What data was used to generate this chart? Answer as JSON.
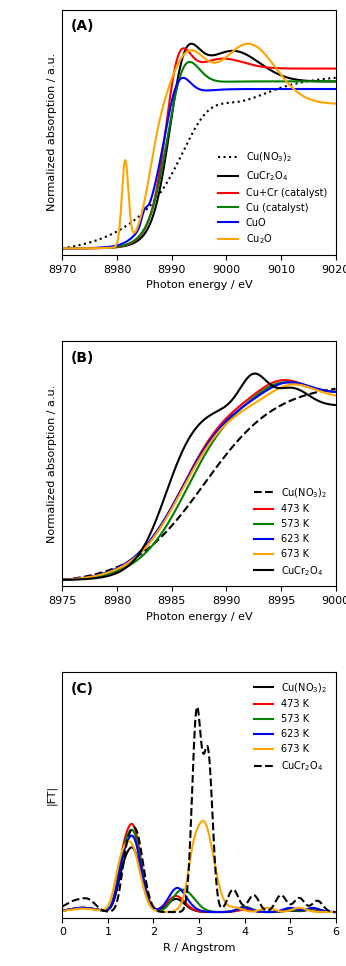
{
  "panel_A": {
    "title": "(A)",
    "xlabel": "Photon energy / eV",
    "ylabel": "Normalized absorption / a.u.",
    "xlim": [
      8970,
      9020
    ],
    "series": [
      {
        "label": "Cu(NO$_3$)$_2$",
        "color": "black",
        "linestyle": "dotted",
        "lw": 1.5
      },
      {
        "label": "CuCr$_2$O$_4$",
        "color": "black",
        "linestyle": "solid",
        "lw": 1.5
      },
      {
        "label": "Cu+Cr (catalyst)",
        "color": "red",
        "linestyle": "solid",
        "lw": 1.5
      },
      {
        "label": "Cu (catalyst)",
        "color": "green",
        "linestyle": "solid",
        "lw": 1.5
      },
      {
        "label": "CuO",
        "color": "blue",
        "linestyle": "solid",
        "lw": 1.5
      },
      {
        "label": "Cu$_2$O",
        "color": "orange",
        "linestyle": "solid",
        "lw": 1.5
      }
    ]
  },
  "panel_B": {
    "title": "(B)",
    "xlabel": "Photon energy / eV",
    "ylabel": "Normalized absorption / a.u.",
    "xlim": [
      8975,
      9000
    ],
    "series": [
      {
        "label": "Cu(NO$_3$)$_2$",
        "color": "black",
        "linestyle": "dashed",
        "lw": 1.5
      },
      {
        "label": "473 K",
        "color": "red",
        "linestyle": "solid",
        "lw": 1.5
      },
      {
        "label": "573 K",
        "color": "green",
        "linestyle": "solid",
        "lw": 1.5
      },
      {
        "label": "623 K",
        "color": "blue",
        "linestyle": "solid",
        "lw": 1.5
      },
      {
        "label": "673 K",
        "color": "orange",
        "linestyle": "solid",
        "lw": 1.5
      },
      {
        "label": "CuCr$_2$O$_4$",
        "color": "black",
        "linestyle": "solid",
        "lw": 1.5
      }
    ]
  },
  "panel_C": {
    "title": "(C)",
    "xlabel": "R / Angstrom",
    "ylabel": "|FT|",
    "xlim": [
      0,
      6
    ],
    "series": [
      {
        "label": "Cu(NO$_3$)$_2$",
        "color": "black",
        "linestyle": "solid",
        "lw": 1.5
      },
      {
        "label": "473 K",
        "color": "red",
        "linestyle": "solid",
        "lw": 1.5
      },
      {
        "label": "573 K",
        "color": "green",
        "linestyle": "solid",
        "lw": 1.5
      },
      {
        "label": "623 K",
        "color": "blue",
        "linestyle": "solid",
        "lw": 1.5
      },
      {
        "label": "673 K",
        "color": "orange",
        "linestyle": "solid",
        "lw": 1.5
      },
      {
        "label": "CuCr$_2$O$_4$",
        "color": "black",
        "linestyle": "dashed",
        "lw": 1.5
      }
    ]
  }
}
